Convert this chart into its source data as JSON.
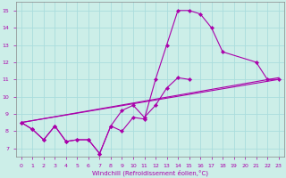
{
  "xlabel": "Windchill (Refroidissement éolien,°C)",
  "bg_color": "#cceee8",
  "grid_color": "#aadddd",
  "line_color": "#aa00aa",
  "xlim": [
    -0.5,
    23.5
  ],
  "ylim": [
    6.5,
    15.5
  ],
  "xticks": [
    0,
    1,
    2,
    3,
    4,
    5,
    6,
    7,
    8,
    9,
    10,
    11,
    12,
    13,
    14,
    15,
    16,
    17,
    18,
    19,
    20,
    21,
    22,
    23
  ],
  "yticks": [
    7,
    8,
    9,
    10,
    11,
    12,
    13,
    14,
    15
  ],
  "series": [
    {
      "x": [
        0,
        1,
        2,
        3,
        4,
        5,
        6,
        7,
        8,
        9,
        10,
        11,
        12,
        13,
        14,
        15,
        16,
        17,
        18,
        21,
        22,
        23
      ],
      "y": [
        8.5,
        8.1,
        7.5,
        8.3,
        7.4,
        7.5,
        7.5,
        6.7,
        8.3,
        8.0,
        8.8,
        8.7,
        11.0,
        13.0,
        15.0,
        15.0,
        14.8,
        14.0,
        12.6,
        12.0,
        11.0,
        11.0
      ],
      "marker": true
    },
    {
      "x": [
        0,
        1,
        2,
        3,
        4,
        5,
        6,
        7,
        8,
        9,
        10,
        11,
        12,
        13,
        14,
        15
      ],
      "y": [
        8.5,
        8.1,
        7.5,
        8.3,
        7.4,
        7.5,
        7.5,
        6.7,
        8.3,
        9.2,
        9.5,
        8.8,
        9.5,
        10.5,
        11.1,
        11.0
      ],
      "marker": true
    },
    {
      "x": [
        0,
        23
      ],
      "y": [
        8.5,
        11.0
      ],
      "marker": false
    },
    {
      "x": [
        0,
        23
      ],
      "y": [
        8.5,
        11.1
      ],
      "marker": false
    }
  ]
}
